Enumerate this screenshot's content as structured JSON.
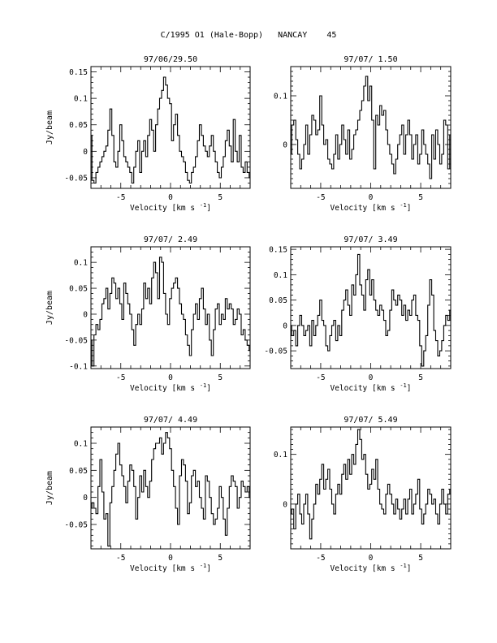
{
  "page": {
    "title": "C/1995 O1 (Hale-Bopp)   NANCAY    45"
  },
  "chart_data": [
    {
      "type": "line",
      "title": "97/06/29.50",
      "xlabel": "Velocity [km s",
      "xlabel_sup": "-1",
      "xlabel_close": "]",
      "ylabel": "Jy/beam",
      "xlim": [
        -8,
        8
      ],
      "ylim": [
        -0.07,
        0.16
      ],
      "xticks": [
        -5,
        0,
        5
      ],
      "yticks": [
        -0.05,
        0,
        0.05,
        0.1,
        0.15
      ],
      "ytick_labels": [
        "-0.05",
        "0",
        "0.05",
        "0.1",
        "0.15"
      ],
      "x_start": -8,
      "x_step": 0.2,
      "values": [
        0.03,
        -0.055,
        -0.06,
        -0.04,
        -0.03,
        -0.02,
        -0.01,
        0.0,
        0.01,
        0.04,
        0.08,
        0.03,
        -0.02,
        -0.03,
        0.0,
        0.05,
        0.02,
        -0.01,
        -0.02,
        -0.03,
        -0.04,
        -0.06,
        -0.03,
        0.0,
        0.02,
        -0.04,
        0.0,
        0.02,
        -0.01,
        0.03,
        0.06,
        0.04,
        0.0,
        0.05,
        0.08,
        0.1,
        0.115,
        0.14,
        0.125,
        0.1,
        0.09,
        0.02,
        0.05,
        0.07,
        0.03,
        0.0,
        -0.01,
        -0.02,
        -0.04,
        -0.055,
        -0.06,
        -0.04,
        -0.03,
        -0.01,
        0.02,
        0.05,
        0.03,
        0.01,
        0.0,
        -0.01,
        0.01,
        0.03,
        0.0,
        -0.02,
        -0.04,
        -0.05,
        -0.03,
        -0.01,
        0.02,
        0.04,
        0.01,
        -0.02,
        0.06,
        0.0,
        -0.02,
        0.03,
        -0.03,
        -0.04,
        -0.02,
        -0.04,
        -0.05
      ]
    },
    {
      "type": "line",
      "title": "97/07/ 1.50",
      "xlabel": "Velocity [km s",
      "xlabel_sup": "-1",
      "xlabel_close": "]",
      "ylabel": "",
      "xlim": [
        -8,
        8
      ],
      "ylim": [
        -0.09,
        0.16
      ],
      "xticks": [
        -5,
        0,
        5
      ],
      "yticks": [
        0,
        0.1
      ],
      "ytick_labels": [
        "0",
        "0.1"
      ],
      "x_start": -8,
      "x_step": 0.2,
      "values": [
        -0.02,
        0.04,
        0.05,
        0.01,
        -0.02,
        -0.05,
        -0.03,
        0.0,
        0.04,
        -0.02,
        0.02,
        0.06,
        0.05,
        0.02,
        0.03,
        0.1,
        0.04,
        0.0,
        0.01,
        -0.03,
        -0.04,
        -0.05,
        -0.02,
        0.02,
        -0.03,
        0.0,
        0.04,
        0.01,
        -0.02,
        0.03,
        -0.03,
        -0.01,
        0.02,
        0.03,
        0.05,
        0.07,
        0.09,
        0.12,
        0.14,
        0.09,
        0.12,
        0.05,
        -0.05,
        0.06,
        0.04,
        0.08,
        0.06,
        0.07,
        0.03,
        0.0,
        -0.02,
        -0.04,
        -0.06,
        -0.03,
        0.0,
        0.02,
        0.04,
        -0.02,
        0.02,
        0.05,
        0.02,
        -0.03,
        0.0,
        0.02,
        -0.04,
        -0.02,
        0.03,
        0.0,
        -0.02,
        -0.04,
        -0.07,
        0.02,
        -0.03,
        0.03,
        0.0,
        -0.04,
        -0.02,
        0.05,
        0.04,
        -0.05,
        0.02
      ]
    },
    {
      "type": "line",
      "title": "97/07/ 2.49",
      "xlabel": "Velocity [km s",
      "xlabel_sup": "-1",
      "xlabel_close": "]",
      "ylabel": "Jy/beam",
      "xlim": [
        -8,
        8
      ],
      "ylim": [
        -0.105,
        0.13
      ],
      "xticks": [
        -5,
        0,
        5
      ],
      "yticks": [
        -0.1,
        -0.05,
        0,
        0.05,
        0.1
      ],
      "ytick_labels": [
        "-0.1",
        "-0.05",
        "0",
        "0.05",
        "0.1"
      ],
      "x_start": -8,
      "x_step": 0.2,
      "values": [
        -0.05,
        -0.1,
        -0.04,
        -0.02,
        -0.03,
        -0.01,
        0.02,
        0.03,
        0.05,
        0.01,
        0.04,
        0.07,
        0.06,
        0.03,
        0.05,
        0.02,
        -0.01,
        0.06,
        0.04,
        0.02,
        0.0,
        -0.03,
        -0.06,
        -0.02,
        0.0,
        -0.02,
        0.01,
        0.06,
        0.03,
        0.05,
        0.02,
        0.07,
        0.1,
        0.08,
        0.03,
        0.11,
        0.1,
        0.04,
        0.0,
        -0.02,
        0.03,
        0.05,
        0.06,
        0.07,
        0.05,
        0.02,
        0.0,
        -0.01,
        -0.04,
        -0.06,
        -0.08,
        -0.03,
        0.0,
        0.02,
        -0.01,
        0.03,
        0.05,
        0.01,
        -0.02,
        0.0,
        -0.05,
        -0.08,
        -0.03,
        0.01,
        0.02,
        -0.02,
        0.0,
        -0.01,
        0.03,
        0.01,
        0.02,
        0.01,
        -0.02,
        -0.01,
        0.01,
        0.0,
        -0.04,
        -0.03,
        -0.05,
        -0.06,
        -0.07
      ]
    },
    {
      "type": "line",
      "title": "97/07/ 3.49",
      "xlabel": "Velocity [km s",
      "xlabel_sup": "-1",
      "xlabel_close": "]",
      "ylabel": "",
      "xlim": [
        -8,
        8
      ],
      "ylim": [
        -0.085,
        0.155
      ],
      "xticks": [
        -5,
        0,
        5
      ],
      "yticks": [
        -0.05,
        0,
        0.05,
        0.1,
        0.15
      ],
      "ytick_labels": [
        "-0.05",
        "0",
        "0.05",
        "0.1",
        "0.15"
      ],
      "x_start": -8,
      "x_step": 0.2,
      "values": [
        0.0,
        -0.02,
        -0.01,
        -0.04,
        0.0,
        0.02,
        0.0,
        -0.02,
        -0.01,
        0.0,
        -0.04,
        0.01,
        -0.02,
        0.0,
        0.02,
        0.05,
        0.01,
        0.0,
        -0.04,
        -0.05,
        -0.02,
        0.0,
        0.01,
        -0.03,
        0.0,
        -0.02,
        0.03,
        0.05,
        0.07,
        0.04,
        0.02,
        0.08,
        0.06,
        0.1,
        0.14,
        0.08,
        0.06,
        0.03,
        0.09,
        0.11,
        0.06,
        0.09,
        0.05,
        0.03,
        0.02,
        0.04,
        0.03,
        0.01,
        -0.02,
        -0.01,
        0.03,
        0.07,
        0.05,
        0.04,
        0.06,
        0.05,
        0.02,
        0.04,
        0.01,
        0.03,
        0.02,
        0.05,
        0.06,
        0.02,
        0.01,
        -0.04,
        -0.08,
        -0.05,
        -0.02,
        0.04,
        0.09,
        0.06,
        -0.01,
        -0.03,
        -0.06,
        -0.05,
        -0.03,
        0.0,
        0.02,
        0.01,
        0.03
      ]
    },
    {
      "type": "line",
      "title": "97/07/ 4.49",
      "xlabel": "Velocity [km s",
      "xlabel_sup": "-1",
      "xlabel_close": "]",
      "ylabel": "Jy/beam",
      "xlim": [
        -8,
        8
      ],
      "ylim": [
        -0.095,
        0.13
      ],
      "xticks": [
        -5,
        0,
        5
      ],
      "yticks": [
        -0.05,
        0,
        0.05,
        0.1
      ],
      "ytick_labels": [
        "-0.05",
        "0",
        "0.05",
        "0.1"
      ],
      "x_start": -8,
      "x_step": 0.2,
      "values": [
        -0.02,
        -0.01,
        -0.02,
        -0.03,
        0.02,
        0.07,
        0.01,
        -0.04,
        -0.03,
        -0.09,
        -0.01,
        0.02,
        0.05,
        0.08,
        0.1,
        0.06,
        0.04,
        0.02,
        -0.01,
        0.03,
        0.06,
        0.05,
        0.02,
        -0.04,
        0.0,
        0.04,
        0.01,
        0.05,
        0.02,
        0.0,
        0.03,
        0.07,
        0.09,
        0.1,
        0.1,
        0.11,
        0.08,
        0.1,
        0.12,
        0.11,
        0.09,
        0.05,
        0.02,
        -0.02,
        -0.05,
        0.04,
        0.07,
        0.06,
        0.03,
        -0.03,
        -0.01,
        0.04,
        0.05,
        0.02,
        0.03,
        0.0,
        -0.02,
        -0.04,
        0.04,
        0.03,
        0.0,
        -0.03,
        -0.05,
        -0.04,
        -0.02,
        0.02,
        0.0,
        -0.04,
        -0.07,
        -0.02,
        0.02,
        0.04,
        0.03,
        0.02,
        -0.02,
        0.0,
        0.03,
        0.02,
        0.01,
        0.02,
        0.0
      ]
    },
    {
      "type": "line",
      "title": "97/07/ 5.49",
      "xlabel": "Velocity [km s",
      "xlabel_sup": "-1",
      "xlabel_close": "]",
      "ylabel": "",
      "xlim": [
        -8,
        8
      ],
      "ylim": [
        -0.09,
        0.155
      ],
      "xticks": [
        -5,
        0,
        5
      ],
      "yticks": [
        0,
        0.1
      ],
      "ytick_labels": [
        "0",
        "0.1"
      ],
      "x_start": -8,
      "x_step": 0.2,
      "values": [
        -0.02,
        -0.01,
        -0.05,
        0.0,
        0.02,
        -0.02,
        -0.04,
        0.0,
        0.02,
        -0.02,
        -0.07,
        -0.03,
        0.0,
        0.04,
        0.02,
        0.05,
        0.08,
        0.03,
        0.05,
        0.07,
        0.03,
        0.0,
        -0.02,
        0.02,
        0.04,
        0.02,
        0.06,
        0.08,
        0.05,
        0.09,
        0.06,
        0.1,
        0.08,
        0.12,
        0.15,
        0.13,
        0.09,
        0.1,
        0.06,
        0.03,
        0.04,
        0.07,
        0.05,
        0.09,
        0.03,
        0.0,
        -0.01,
        -0.02,
        0.02,
        0.04,
        0.02,
        0.0,
        -0.02,
        0.01,
        -0.01,
        -0.03,
        -0.01,
        0.01,
        -0.02,
        0.01,
        0.03,
        -0.02,
        0.0,
        0.02,
        0.05,
        -0.01,
        -0.04,
        -0.02,
        0.0,
        0.03,
        0.02,
        0.0,
        0.01,
        -0.02,
        -0.04,
        0.0,
        0.03,
        0.0,
        -0.02,
        0.02,
        0.03
      ]
    }
  ]
}
